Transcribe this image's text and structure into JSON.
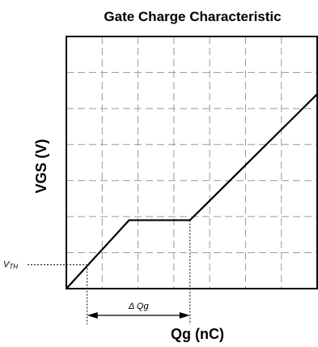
{
  "chart_data": {
    "type": "line",
    "title": "Gate Charge Characteristic",
    "xlabel": "Qg (nC)",
    "ylabel": "VGS (V)",
    "xlim": [
      0,
      7
    ],
    "ylim": [
      0,
      7
    ],
    "grid": true,
    "grid_style": "dashed",
    "x_divisions": 7,
    "y_divisions": 7,
    "series": [
      {
        "name": "",
        "x": [
          0,
          1.75,
          3.45,
          7.0
        ],
        "y": [
          0,
          1.9,
          1.9,
          5.4
        ]
      }
    ],
    "annotations": {
      "vth_label_main": "V",
      "vth_label_sub": "TH",
      "vth_value": 0.66,
      "vth_q": 0.58,
      "delta_label": "Δ Qg",
      "delta_range": [
        0.58,
        3.45
      ]
    },
    "colors": {
      "line": "#000000",
      "grid": "#999999",
      "frame": "#000000"
    }
  }
}
